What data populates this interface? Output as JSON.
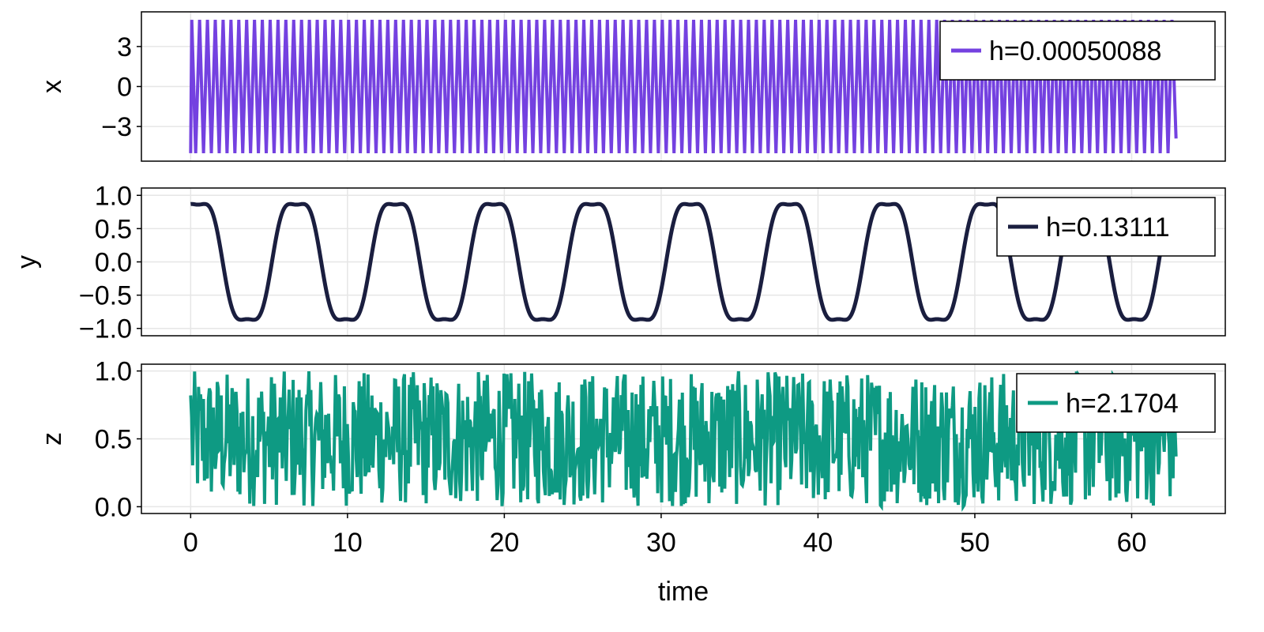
{
  "chart_data": {
    "type": "line",
    "xlabel": "time",
    "xlim": [
      -3.14,
      65.97
    ],
    "xticks": [
      0,
      10,
      20,
      30,
      40,
      50,
      60
    ],
    "grid": true,
    "panels": [
      {
        "ylabel": "x",
        "ylim": [
          -5.6,
          5.6
        ],
        "yticks": [
          -3,
          0,
          3
        ],
        "ytick_labels": [
          "−3",
          "0",
          "3"
        ],
        "legend_position": "top-right",
        "series": [
          {
            "name": "h=0.00050088",
            "color": "#7441e0",
            "kind": "sawtooth",
            "t_end": 62.83,
            "amplitude": 5.0,
            "period": 0.5,
            "phase": 0.07,
            "end_value": -3.9
          }
        ]
      },
      {
        "ylabel": "y",
        "ylim": [
          -1.11,
          1.11
        ],
        "yticks": [
          -1.0,
          -0.5,
          0.0,
          0.5,
          1.0
        ],
        "ytick_labels": [
          "−1.0",
          "−0.5",
          "0.0",
          "0.5",
          "1.0"
        ],
        "legend_position": "top-right",
        "series": [
          {
            "name": "h=0.13111",
            "color": "#1a1e3f",
            "kind": "smooth",
            "t_end": 62.83,
            "formula": "sin(t + 1.1) + 0.14 * sin(3*t + 3.3)"
          }
        ]
      },
      {
        "ylabel": "z",
        "ylim": [
          -0.05,
          1.05
        ],
        "yticks": [
          0.0,
          0.5,
          1.0
        ],
        "ytick_labels": [
          "0.0",
          "0.5",
          "1.0"
        ],
        "legend_position": "top-right",
        "series": [
          {
            "name": "h=2.1704",
            "color": "#0e9a83",
            "kind": "noise",
            "t_end": 62.83,
            "range": [
              0.0,
              1.0
            ],
            "samples": 1000,
            "start_value": 0.82,
            "end_value": 0.37
          }
        ]
      }
    ]
  }
}
